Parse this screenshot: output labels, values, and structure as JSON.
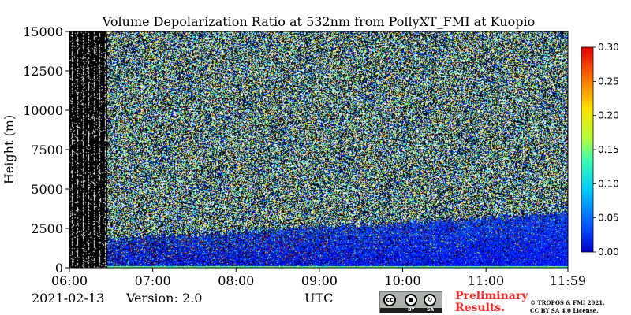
{
  "chart_data": {
    "type": "heatmap",
    "title": "Volume Depolarization Ratio at 532nm from PollyXT_FMI at Kuopio",
    "xlabel": "UTC",
    "ylabel": "Height (m)",
    "x_tick_labels": [
      "06:00",
      "07:00",
      "08:00",
      "09:00",
      "10:00",
      "11:00",
      "11:59"
    ],
    "x_ticks_hours": [
      6,
      7,
      8,
      9,
      10,
      11,
      11.983
    ],
    "xlim_hours": [
      6,
      11.983
    ],
    "y_ticks": [
      0,
      2500,
      5000,
      7500,
      10000,
      12500,
      15000
    ],
    "y_tick_labels": [
      "0",
      "2500",
      "5000",
      "7500",
      "10000",
      "12500",
      "15000"
    ],
    "ylim": [
      0,
      15000
    ],
    "colorbar": {
      "range": [
        0.0,
        0.3
      ],
      "ticks": [
        0.0,
        0.05,
        0.1,
        0.15,
        0.2,
        0.25,
        0.3
      ],
      "tick_labels": [
        "0.00",
        "0.05",
        "0.10",
        "0.15",
        "0.20",
        "0.25",
        "0.30"
      ],
      "colormap": "jet"
    },
    "features": {
      "missing_data_hours": [
        6.0,
        6.45
      ],
      "aerosol_layer_top_m": 3000,
      "noise_above_m": 3000
    }
  },
  "footer": {
    "date": "2021-02-13",
    "version": "Version: 2.0",
    "xlabel": "UTC",
    "license_badge": {
      "cc": "cc",
      "by": "BY",
      "sa": "SA"
    },
    "preliminary_line1": "Preliminary",
    "preliminary_line2": "Results.",
    "copyright_line1": "© TROPOS & FMI 2021.",
    "copyright_line2": "CC BY SA 4.0 License."
  },
  "colors": {
    "preliminary": "#ff2a2a",
    "background": "#ffffff"
  }
}
